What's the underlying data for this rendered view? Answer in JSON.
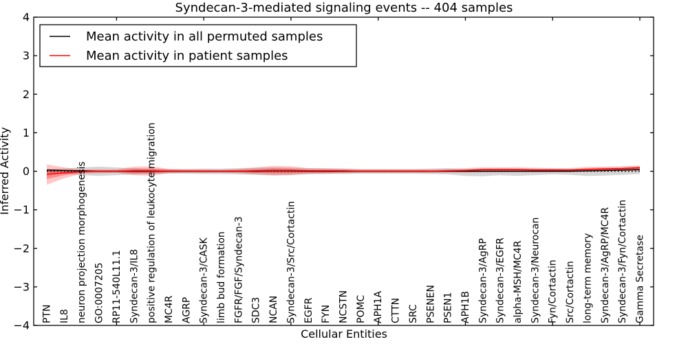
{
  "chart_data": {
    "type": "line",
    "title": "Syndecan-3-mediated signaling events -- 404 samples",
    "xlabel": "Cellular Entities",
    "ylabel": "Inferred Activity",
    "ylim": [
      -4,
      4
    ],
    "grid": false,
    "legend_position": "upper-left",
    "ytick_values": [
      -4,
      -3,
      -2,
      -1,
      0,
      1,
      2,
      3,
      4
    ],
    "ytick_labels": [
      "−4",
      "−3",
      "−2",
      "−1",
      "0",
      "1",
      "2",
      "3",
      "4"
    ],
    "x_major_ticks": [
      5,
      10,
      15,
      20,
      25,
      30,
      35
    ],
    "categories": [
      "PTN",
      "IL8",
      "neuron projection morphogenesis",
      "GO:0007205",
      "RP11-540L11.1",
      "Syndecan-3/IL8",
      "positive regulation of leukocyte migration",
      "MC4R",
      "AGRP",
      "Syndecan-3/CASK",
      "limb bud formation",
      "FGFR/FGF/Syndecan-3",
      "SDC3",
      "NCAN",
      "Syndecan-3/Src/Cortactin",
      "EGFR",
      "FYN",
      "NCSTN",
      "POMC",
      "APH1A",
      "CTTN",
      "SRC",
      "PSENEN",
      "PSEN1",
      "APH1B",
      "Syndecan-3/AgRP",
      "Syndecan-3/EGFR",
      "alpha-MSH/MC4R",
      "Syndecan-3/Neurocan",
      "Fyn/Cortactin",
      "Src/Cortactin",
      "long-term memory",
      "Syndecan-3/AgRP/MC4R",
      "Syndecan-3/Fyn/Cortactin",
      "Gamma Secretase"
    ],
    "series": [
      {
        "name": "Mean activity in all permuted samples",
        "color": "#000000",
        "style": "solid",
        "values": [
          0.03,
          0.02,
          0.01,
          0.0,
          0.0,
          0.0,
          0.0,
          0.0,
          0.0,
          0.0,
          0.0,
          0.0,
          0.0,
          0.01,
          0.01,
          0.0,
          0.0,
          0.0,
          0.0,
          0.0,
          0.0,
          0.0,
          0.0,
          0.0,
          0.0,
          0.0,
          0.0,
          0.0,
          0.0,
          0.0,
          0.0,
          0.01,
          0.02,
          0.03,
          0.04
        ]
      },
      {
        "name": "Mean activity in patient samples",
        "color": "#ff0000",
        "style": "solid",
        "values": [
          -0.08,
          -0.04,
          -0.01,
          0.0,
          0.0,
          0.01,
          0.01,
          0.0,
          0.0,
          0.0,
          0.0,
          0.0,
          0.01,
          0.02,
          0.02,
          0.01,
          0.01,
          0.01,
          0.0,
          0.0,
          0.0,
          0.0,
          0.0,
          0.01,
          0.02,
          0.04,
          0.04,
          0.04,
          0.03,
          0.03,
          0.03,
          0.05,
          0.06,
          0.07,
          0.09
        ]
      }
    ],
    "bands": [
      {
        "name": "permuted-band",
        "color": "#7f7f7f",
        "opacity": 0.32,
        "lower": [
          -0.06,
          -0.07,
          -0.1,
          -0.12,
          -0.1,
          -0.08,
          -0.07,
          -0.06,
          -0.06,
          -0.07,
          -0.07,
          -0.08,
          -0.09,
          -0.1,
          -0.09,
          -0.08,
          -0.07,
          -0.07,
          -0.06,
          -0.06,
          -0.06,
          -0.06,
          -0.07,
          -0.08,
          -0.12,
          -0.13,
          -0.1,
          -0.12,
          -0.1,
          -0.08,
          -0.09,
          -0.12,
          -0.11,
          -0.09,
          -0.07
        ],
        "upper": [
          0.06,
          0.07,
          0.1,
          0.12,
          0.1,
          0.08,
          0.07,
          0.06,
          0.06,
          0.07,
          0.07,
          0.08,
          0.09,
          0.1,
          0.09,
          0.08,
          0.07,
          0.07,
          0.06,
          0.06,
          0.06,
          0.06,
          0.07,
          0.08,
          0.06,
          0.06,
          0.06,
          0.06,
          0.06,
          0.06,
          0.06,
          0.06,
          0.06,
          0.07,
          0.08
        ]
      },
      {
        "name": "patient-band-outer",
        "color": "#ff0000",
        "opacity": 0.22,
        "lower": [
          -0.35,
          -0.18,
          -0.06,
          -0.05,
          -0.04,
          -0.1,
          -0.11,
          -0.05,
          -0.04,
          -0.04,
          -0.04,
          -0.05,
          -0.08,
          -0.11,
          -0.1,
          -0.06,
          -0.06,
          -0.05,
          -0.04,
          -0.04,
          -0.04,
          -0.04,
          -0.04,
          -0.03,
          -0.03,
          -0.02,
          -0.02,
          -0.01,
          -0.01,
          -0.01,
          0.0,
          0.0,
          0.0,
          0.01,
          0.02
        ],
        "upper": [
          0.18,
          0.1,
          0.05,
          0.05,
          0.05,
          0.12,
          0.13,
          0.06,
          0.05,
          0.05,
          0.04,
          0.06,
          0.1,
          0.14,
          0.13,
          0.08,
          0.08,
          0.07,
          0.05,
          0.05,
          0.05,
          0.05,
          0.05,
          0.06,
          0.08,
          0.1,
          0.1,
          0.1,
          0.09,
          0.08,
          0.08,
          0.11,
          0.12,
          0.13,
          0.15
        ]
      },
      {
        "name": "patient-band-inner",
        "color": "#ff0000",
        "opacity": 0.3,
        "lower": [
          -0.2,
          -0.1,
          -0.03,
          -0.02,
          -0.02,
          -0.05,
          -0.05,
          -0.02,
          -0.02,
          -0.02,
          -0.02,
          -0.02,
          -0.04,
          -0.05,
          -0.05,
          -0.03,
          -0.03,
          -0.02,
          -0.02,
          -0.02,
          -0.02,
          -0.02,
          -0.02,
          -0.01,
          -0.01,
          0.0,
          0.0,
          0.0,
          0.0,
          0.0,
          0.01,
          0.01,
          0.02,
          0.03,
          0.04
        ],
        "upper": [
          0.05,
          0.03,
          0.02,
          0.02,
          0.02,
          0.06,
          0.06,
          0.03,
          0.02,
          0.02,
          0.02,
          0.03,
          0.05,
          0.07,
          0.06,
          0.04,
          0.04,
          0.03,
          0.02,
          0.02,
          0.02,
          0.02,
          0.02,
          0.03,
          0.04,
          0.07,
          0.07,
          0.07,
          0.06,
          0.06,
          0.05,
          0.08,
          0.09,
          0.1,
          0.12
        ]
      }
    ],
    "zero_line": {
      "value": 0,
      "color": "#000000",
      "style": "dotted"
    }
  }
}
